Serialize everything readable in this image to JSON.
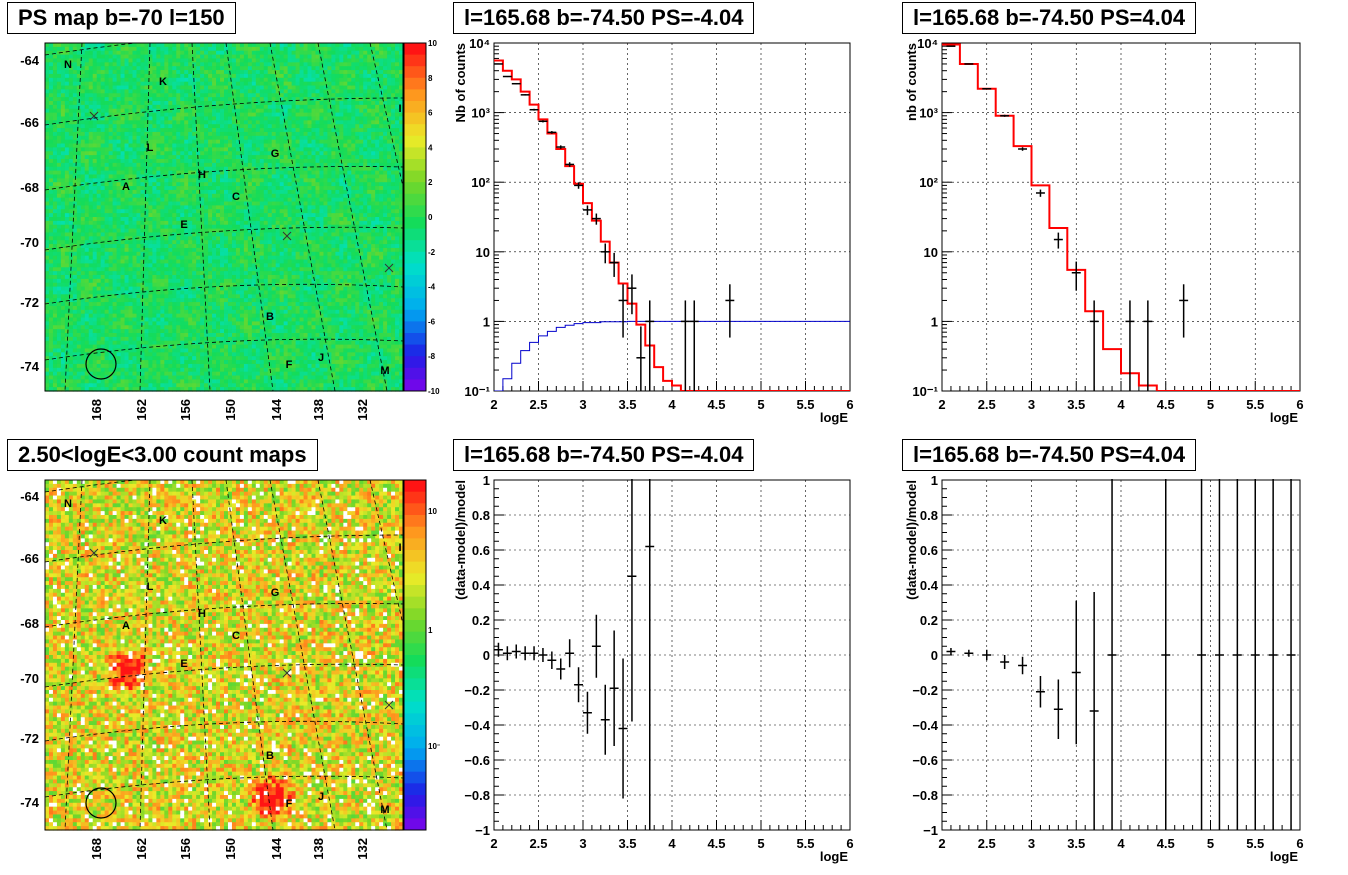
{
  "colors": {
    "data": "#000000",
    "model": "#ff0000",
    "extra": "#0000cc",
    "grid": "#000000"
  },
  "maps": [
    {
      "id": "map-ps",
      "title": "PS map b=-70 l=150",
      "yticks": [
        "-64",
        "-66",
        "-68",
        "-70",
        "-72",
        "-74"
      ],
      "xticks": [
        "168",
        "162",
        "156",
        "150",
        "144",
        "138",
        "132"
      ],
      "colorbar": {
        "labels": [
          "10",
          "8",
          "6",
          "4",
          "2",
          "0",
          "-2",
          "-4",
          "-6",
          "-8",
          "-10"
        ],
        "min": -10,
        "max": 10,
        "icon": "rainbow-colorbar"
      },
      "sources": [
        {
          "name": "N"
        },
        {
          "name": "K"
        },
        {
          "name": "I"
        },
        {
          "name": "L"
        },
        {
          "name": "G"
        },
        {
          "name": "H"
        },
        {
          "name": "A"
        },
        {
          "name": "C"
        },
        {
          "name": "E"
        },
        {
          "name": "B"
        },
        {
          "name": "J"
        },
        {
          "name": "F"
        },
        {
          "name": "M"
        }
      ],
      "style": "ps"
    },
    {
      "id": "map-counts",
      "title": "2.50<logE<3.00 count maps",
      "yticks": [
        "-64",
        "-66",
        "-68",
        "-70",
        "-72",
        "-74"
      ],
      "xticks": [
        "168",
        "162",
        "156",
        "150",
        "144",
        "138",
        "132"
      ],
      "colorbar": {
        "labels": [
          "10",
          "1",
          "10⁻¹"
        ],
        "scale": "log",
        "icon": "rainbow-colorbar"
      },
      "sources": [
        {
          "name": "N"
        },
        {
          "name": "K"
        },
        {
          "name": "I"
        },
        {
          "name": "L"
        },
        {
          "name": "G"
        },
        {
          "name": "H"
        },
        {
          "name": "A"
        },
        {
          "name": "C"
        },
        {
          "name": "E"
        },
        {
          "name": "B"
        },
        {
          "name": "J"
        },
        {
          "name": "F"
        },
        {
          "name": "M"
        }
      ],
      "style": "counts"
    }
  ],
  "chart_data": [
    {
      "id": "spec-neg",
      "type": "line",
      "title": "l=165.68 b=-74.50 PS=-4.04",
      "xlabel": "logE",
      "ylabel": "Nb of counts",
      "xlim": [
        2,
        6
      ],
      "ylim": [
        0.1,
        10000
      ],
      "yscale": "log",
      "grid": true,
      "xticks": [
        "2",
        "2.5",
        "3",
        "3.5",
        "4",
        "4.5",
        "5",
        "5.5",
        "6"
      ],
      "yticks": [
        "10⁻¹",
        "1",
        "10",
        "10²",
        "10³",
        "10⁴"
      ],
      "points": [
        {
          "x": 2.05,
          "y": 5000
        },
        {
          "x": 2.15,
          "y": 3300
        },
        {
          "x": 2.25,
          "y": 2600
        },
        {
          "x": 2.35,
          "y": 1800
        },
        {
          "x": 2.45,
          "y": 1100
        },
        {
          "x": 2.55,
          "y": 750
        },
        {
          "x": 2.65,
          "y": 520
        },
        {
          "x": 2.75,
          "y": 320
        },
        {
          "x": 2.85,
          "y": 180
        },
        {
          "x": 2.95,
          "y": 90
        },
        {
          "x": 3.05,
          "y": 40
        },
        {
          "x": 3.15,
          "y": 30
        },
        {
          "x": 3.25,
          "y": 10
        },
        {
          "x": 3.35,
          "y": 7
        },
        {
          "x": 3.45,
          "y": 2
        },
        {
          "x": 3.55,
          "y": 3
        },
        {
          "x": 3.65,
          "y": 0.3
        },
        {
          "x": 3.75,
          "y": 1
        },
        {
          "x": 4.15,
          "y": 1
        },
        {
          "x": 4.25,
          "y": 1
        },
        {
          "x": 4.65,
          "y": 2
        }
      ],
      "model_steps": [
        {
          "x0": 2.0,
          "x1": 2.1,
          "y": 5600
        },
        {
          "x0": 2.1,
          "y": 4000,
          "x1": 2.2
        },
        {
          "x0": 2.2,
          "x1": 2.3,
          "y": 3000
        },
        {
          "x0": 2.3,
          "x1": 2.4,
          "y": 2000
        },
        {
          "x0": 2.4,
          "x1": 2.5,
          "y": 1300
        },
        {
          "x0": 2.5,
          "x1": 2.6,
          "y": 800
        },
        {
          "x0": 2.6,
          "x1": 2.7,
          "y": 500
        },
        {
          "x0": 2.7,
          "x1": 2.8,
          "y": 300
        },
        {
          "x0": 2.8,
          "x1": 2.9,
          "y": 170
        },
        {
          "x0": 2.9,
          "x1": 3.0,
          "y": 95
        },
        {
          "x0": 3.0,
          "x1": 3.1,
          "y": 50
        },
        {
          "x0": 3.1,
          "x1": 3.2,
          "y": 28
        },
        {
          "x0": 3.2,
          "x1": 3.3,
          "y": 14
        },
        {
          "x0": 3.3,
          "x1": 3.4,
          "y": 7
        },
        {
          "x0": 3.4,
          "x1": 3.5,
          "y": 3.5
        },
        {
          "x0": 3.5,
          "x1": 3.6,
          "y": 1.8
        },
        {
          "x0": 3.6,
          "x1": 3.7,
          "y": 0.9
        },
        {
          "x0": 3.7,
          "x1": 3.8,
          "y": 0.45
        },
        {
          "x0": 3.8,
          "x1": 3.9,
          "y": 0.22
        },
        {
          "x0": 3.9,
          "x1": 4.0,
          "y": 0.14
        },
        {
          "x0": 4.0,
          "x1": 4.1,
          "y": 0.12
        },
        {
          "x0": 4.1,
          "x1": 6.0,
          "y": 0.1
        }
      ],
      "extra_curve": [
        {
          "x": 2.0,
          "y": 0.1
        },
        {
          "x": 2.1,
          "y": 0.15
        },
        {
          "x": 2.2,
          "y": 0.25
        },
        {
          "x": 2.3,
          "y": 0.38
        },
        {
          "x": 2.4,
          "y": 0.5
        },
        {
          "x": 2.5,
          "y": 0.62
        },
        {
          "x": 2.6,
          "y": 0.72
        },
        {
          "x": 2.7,
          "y": 0.82
        },
        {
          "x": 2.8,
          "y": 0.88
        },
        {
          "x": 2.9,
          "y": 0.93
        },
        {
          "x": 3.0,
          "y": 0.96
        },
        {
          "x": 3.2,
          "y": 0.99
        },
        {
          "x": 3.5,
          "y": 1
        },
        {
          "x": 6.0,
          "y": 1
        }
      ]
    },
    {
      "id": "spec-pos",
      "type": "line",
      "title": "l=165.68 b=-74.50 PS=4.04",
      "xlabel": "logE",
      "ylabel": "nb of counts",
      "xlim": [
        2,
        6
      ],
      "ylim": [
        0.1,
        10000
      ],
      "yscale": "log",
      "grid": true,
      "xticks": [
        "2",
        "2.5",
        "3",
        "3.5",
        "4",
        "4.5",
        "5",
        "5.5",
        "6"
      ],
      "yticks": [
        "10⁻¹",
        "1",
        "10",
        "10²",
        "10³",
        "10⁴"
      ],
      "points": [
        {
          "x": 2.1,
          "y": 9000
        },
        {
          "x": 2.3,
          "y": 5000
        },
        {
          "x": 2.5,
          "y": 2200
        },
        {
          "x": 2.7,
          "y": 900
        },
        {
          "x": 2.9,
          "y": 300
        },
        {
          "x": 3.1,
          "y": 70
        },
        {
          "x": 3.3,
          "y": 15
        },
        {
          "x": 3.5,
          "y": 5
        },
        {
          "x": 3.7,
          "y": 1
        },
        {
          "x": 4.1,
          "y": 1
        },
        {
          "x": 4.3,
          "y": 1
        },
        {
          "x": 4.7,
          "y": 2
        }
      ],
      "model_steps": [
        {
          "x0": 2.0,
          "x1": 2.2,
          "y": 9500
        },
        {
          "x0": 2.2,
          "x1": 2.4,
          "y": 5000
        },
        {
          "x0": 2.4,
          "x1": 2.6,
          "y": 2200
        },
        {
          "x0": 2.6,
          "x1": 2.8,
          "y": 900
        },
        {
          "x0": 2.8,
          "x1": 3.0,
          "y": 330
        },
        {
          "x0": 3.0,
          "x1": 3.2,
          "y": 90
        },
        {
          "x0": 3.2,
          "x1": 3.4,
          "y": 22
        },
        {
          "x0": 3.4,
          "x1": 3.6,
          "y": 5.5
        },
        {
          "x0": 3.6,
          "x1": 3.8,
          "y": 1.4
        },
        {
          "x0": 3.8,
          "x1": 4.0,
          "y": 0.4
        },
        {
          "x0": 4.0,
          "x1": 4.2,
          "y": 0.18
        },
        {
          "x0": 4.2,
          "x1": 4.4,
          "y": 0.12
        },
        {
          "x0": 4.4,
          "x1": 6.0,
          "y": 0.1
        }
      ]
    },
    {
      "id": "resid-neg",
      "type": "scatter",
      "title": "l=165.68 b=-74.50 PS=-4.04",
      "xlabel": "logE",
      "ylabel": "(data-model)/model",
      "xlim": [
        2,
        6
      ],
      "ylim": [
        -1,
        1
      ],
      "grid": true,
      "xticks": [
        "2",
        "2.5",
        "3",
        "3.5",
        "4",
        "4.5",
        "5",
        "5.5",
        "6"
      ],
      "yticks": [
        "−1",
        "−0.8",
        "−0.6",
        "−0.4",
        "−0.2",
        "0",
        "0.2",
        "0.4",
        "0.6",
        "0.8",
        "1"
      ],
      "points": [
        {
          "x": 2.05,
          "y": 0.03,
          "e": 0.04
        },
        {
          "x": 2.15,
          "y": 0.01,
          "e": 0.04
        },
        {
          "x": 2.25,
          "y": 0.02,
          "e": 0.04
        },
        {
          "x": 2.35,
          "y": 0.01,
          "e": 0.04
        },
        {
          "x": 2.45,
          "y": 0.01,
          "e": 0.04
        },
        {
          "x": 2.55,
          "y": 0.0,
          "e": 0.04
        },
        {
          "x": 2.65,
          "y": -0.03,
          "e": 0.05
        },
        {
          "x": 2.75,
          "y": -0.08,
          "e": 0.06
        },
        {
          "x": 2.85,
          "y": 0.01,
          "e": 0.08
        },
        {
          "x": 2.95,
          "y": -0.17,
          "e": 0.1
        },
        {
          "x": 3.05,
          "y": -0.33,
          "e": 0.12
        },
        {
          "x": 3.15,
          "y": 0.05,
          "e": 0.18
        },
        {
          "x": 3.25,
          "y": -0.37,
          "e": 0.2
        },
        {
          "x": 3.35,
          "y": -0.19,
          "e": 0.33
        },
        {
          "x": 3.45,
          "y": -0.42,
          "e": 0.4
        },
        {
          "x": 3.55,
          "y": 0.45,
          "e": 0.83
        },
        {
          "x": 3.75,
          "y": 0.62,
          "e": 1.62
        }
      ]
    },
    {
      "id": "resid-pos",
      "type": "scatter",
      "title": "l=165.68 b=-74.50 PS=4.04",
      "xlabel": "logE",
      "ylabel": "(data-model)/model",
      "xlim": [
        2,
        6
      ],
      "ylim": [
        -1,
        1
      ],
      "grid": true,
      "xticks": [
        "2",
        "2.5",
        "3",
        "3.5",
        "4",
        "4.5",
        "5",
        "5.5",
        "6"
      ],
      "yticks": [
        "−1",
        "−0.8",
        "−0.6",
        "−0.4",
        "−0.2",
        "0",
        "0.2",
        "0.4",
        "0.6",
        "0.8",
        "1"
      ],
      "points": [
        {
          "x": 2.1,
          "y": 0.02,
          "e": 0.02
        },
        {
          "x": 2.3,
          "y": 0.01,
          "e": 0.02
        },
        {
          "x": 2.5,
          "y": 0.0,
          "e": 0.03
        },
        {
          "x": 2.7,
          "y": -0.04,
          "e": 0.04
        },
        {
          "x": 2.9,
          "y": -0.06,
          "e": 0.05
        },
        {
          "x": 3.1,
          "y": -0.21,
          "e": 0.09
        },
        {
          "x": 3.3,
          "y": -0.31,
          "e": 0.17
        },
        {
          "x": 3.5,
          "y": -0.1,
          "e": 0.41
        },
        {
          "x": 3.7,
          "y": -0.32,
          "e": 0.68
        },
        {
          "x": 3.9,
          "y": 0.0,
          "e": 1.1
        },
        {
          "x": 4.5,
          "y": 0.0,
          "e": 1.1
        },
        {
          "x": 4.9,
          "y": 0.0,
          "e": 1.1
        },
        {
          "x": 5.1,
          "y": 0.0,
          "e": 1.1
        },
        {
          "x": 5.3,
          "y": 0.0,
          "e": 1.1
        },
        {
          "x": 5.5,
          "y": 0.0,
          "e": 1.1
        },
        {
          "x": 5.7,
          "y": 0.0,
          "e": 1.1
        },
        {
          "x": 5.9,
          "y": 0.0,
          "e": 1.1
        }
      ]
    }
  ]
}
